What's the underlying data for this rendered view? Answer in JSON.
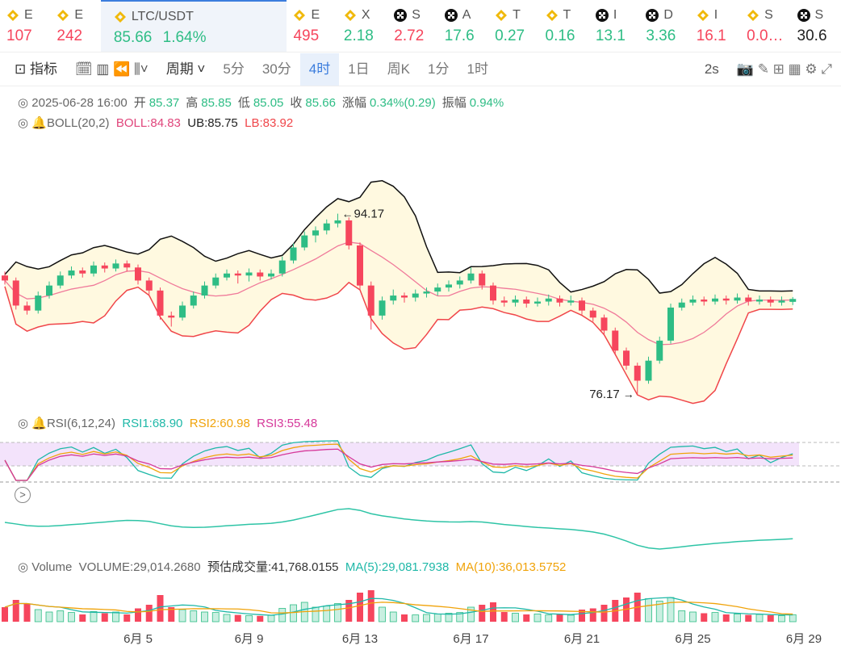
{
  "tickers": [
    {
      "name": "E",
      "price": "107",
      "color": "#f6465d",
      "icon": "bnb"
    },
    {
      "name": "E",
      "price": "242",
      "color": "#f6465d",
      "icon": "bnb"
    },
    {
      "name": "LTC/USDT",
      "price": "85.66",
      "change": "1.64%",
      "color": "#2ebd85",
      "icon": "bnb",
      "selected": true
    },
    {
      "name": "E",
      "price": "495",
      "color": "#f6465d",
      "icon": "bnb"
    },
    {
      "name": "X",
      "price": "2.18",
      "color": "#2ebd85",
      "icon": "bnb"
    },
    {
      "name": "S",
      "price": "2.72",
      "color": "#f6465d",
      "icon": "okx"
    },
    {
      "name": "A",
      "price": "17.6",
      "color": "#2ebd85",
      "icon": "okx"
    },
    {
      "name": "T",
      "price": "0.27",
      "color": "#2ebd85",
      "icon": "bnb"
    },
    {
      "name": "T",
      "price": "0.16",
      "color": "#2ebd85",
      "icon": "bnb"
    },
    {
      "name": "I",
      "price": "13.1",
      "color": "#2ebd85",
      "icon": "okx"
    },
    {
      "name": "D",
      "price": "3.36",
      "color": "#2ebd85",
      "icon": "okx"
    },
    {
      "name": "I",
      "price": "16.1",
      "color": "#f6465d",
      "icon": "bnb"
    },
    {
      "name": "S",
      "price": "0.0…",
      "color": "#f6465d",
      "icon": "bnb"
    },
    {
      "name": "S",
      "price": "30.6",
      "color": "#222222",
      "icon": "okx"
    }
  ],
  "toolbar": {
    "indicator": "指标",
    "period": "周期",
    "intervals": [
      "5分",
      "30分",
      "4时",
      "1日",
      "周K",
      "1分",
      "1时"
    ],
    "active": "4时",
    "refresh": "2s"
  },
  "info": {
    "time": "2025-06-28 16:00",
    "fields": [
      {
        "label": "开",
        "value": "85.37"
      },
      {
        "label": "高",
        "value": "85.85"
      },
      {
        "label": "低",
        "value": "85.05"
      },
      {
        "label": "收",
        "value": "85.66"
      },
      {
        "label": "涨幅",
        "value": "0.34%(0.29)"
      },
      {
        "label": "振幅",
        "value": "0.94%"
      }
    ]
  },
  "boll": {
    "label": "BOLL(20,2)",
    "mid": "BOLL:84.83",
    "ub": "UB:85.75",
    "lb": "LB:83.92"
  },
  "rsi": {
    "label": "RSI(6,12,24)",
    "rsi1": "RSI1:68.90",
    "rsi2": "RSI2:60.98",
    "rsi3": "RSI3:55.48"
  },
  "volume_header": {
    "label": "Volume",
    "volume": "VOLUME:29,014.2680",
    "estimate": "预估成交量:41,768.0155",
    "ma5": "MA(5):29,081.7938",
    "ma10": "MA(10):36,013.5752"
  },
  "chart_data": {
    "type": "candlestick",
    "ylim": [
      74.8,
      101.8
    ],
    "volume_ylim": [
      0,
      140000
    ],
    "categories": [
      null,
      null,
      null,
      null,
      null,
      null,
      null,
      null,
      null,
      null,
      null,
      null,
      "6月 5",
      null,
      null,
      null,
      null,
      null,
      null,
      null,
      null,
      null,
      "6月 9",
      null,
      null,
      null,
      null,
      null,
      null,
      null,
      null,
      null,
      "6月 13",
      null,
      null,
      null,
      null,
      null,
      null,
      null,
      null,
      null,
      "6月 17",
      null,
      null,
      null,
      null,
      null,
      null,
      null,
      null,
      null,
      "6月 21",
      null,
      null,
      null,
      null,
      null,
      null,
      null,
      null,
      null,
      "6月 25",
      null,
      null,
      null,
      null,
      null,
      null,
      null,
      null,
      null,
      "6月 29"
    ],
    "candles": [
      [
        88,
        88.4,
        87.1,
        87.5
      ],
      [
        87.5,
        87.8,
        84.6,
        85
      ],
      [
        85,
        85.4,
        84.1,
        84.5
      ],
      [
        84.5,
        86.4,
        84.2,
        86
      ],
      [
        86,
        87.4,
        85.7,
        87
      ],
      [
        87,
        88.4,
        86.7,
        88
      ],
      [
        88,
        88.9,
        87.7,
        88.5
      ],
      [
        88.5,
        88.8,
        87.8,
        88.2
      ],
      [
        88.2,
        89.4,
        87.9,
        89
      ],
      [
        89,
        89.3,
        88.3,
        88.7
      ],
      [
        88.7,
        89.6,
        88.4,
        89.2
      ],
      [
        89.2,
        89.5,
        88.4,
        88.8
      ],
      [
        88.8,
        89.1,
        87.1,
        87.5
      ],
      [
        87.5,
        87.8,
        86.1,
        86.5
      ],
      [
        86.5,
        86.8,
        83.6,
        84
      ],
      [
        84,
        84.4,
        82.9,
        83.8
      ],
      [
        83.8,
        85.4,
        83.5,
        85
      ],
      [
        85,
        86.4,
        84.7,
        86
      ],
      [
        86,
        87.4,
        85.7,
        87
      ],
      [
        87,
        88.2,
        86.7,
        87.8
      ],
      [
        87.8,
        88.6,
        87.5,
        88.2
      ],
      [
        88.2,
        88.5,
        87.2,
        88
      ],
      [
        88,
        88.7,
        87.4,
        88.3
      ],
      [
        88.3,
        88.6,
        87.5,
        87.9
      ],
      [
        87.9,
        88.6,
        87.6,
        88.2
      ],
      [
        88.2,
        89.9,
        87.9,
        89.5
      ],
      [
        89.5,
        91.2,
        89.2,
        90.8
      ],
      [
        90.8,
        92.4,
        90.5,
        92
      ],
      [
        92,
        92.9,
        91.3,
        92.5
      ],
      [
        92.5,
        93.6,
        92.1,
        93.2
      ],
      [
        93.2,
        94.17,
        92.8,
        93.5
      ],
      [
        93.5,
        93.8,
        90.6,
        91
      ],
      [
        91,
        91.3,
        86.6,
        87
      ],
      [
        87,
        87.4,
        82.6,
        84
      ],
      [
        84,
        85.9,
        83.6,
        85.5
      ],
      [
        85.5,
        86.6,
        85.1,
        86
      ],
      [
        86,
        86.3,
        85.3,
        85.8
      ],
      [
        85.8,
        86.6,
        85.4,
        86.2
      ],
      [
        86.2,
        86.8,
        85.8,
        86.4
      ],
      [
        86.4,
        87.2,
        86,
        86.8
      ],
      [
        86.8,
        87.5,
        86.4,
        87.1
      ],
      [
        87.1,
        87.9,
        86.7,
        87.5
      ],
      [
        87.5,
        88.8,
        87.2,
        88.2
      ],
      [
        88.2,
        88.5,
        86.6,
        87
      ],
      [
        87,
        87.3,
        85.1,
        85.5
      ],
      [
        85.5,
        85.9,
        84.9,
        85.3
      ],
      [
        85.3,
        86,
        84.9,
        85.6
      ],
      [
        85.6,
        85.9,
        84.8,
        85.2
      ],
      [
        85.2,
        85.8,
        84.9,
        85.4
      ],
      [
        85.4,
        86.1,
        85,
        85.7
      ],
      [
        85.7,
        86,
        84.9,
        85.3
      ],
      [
        85.3,
        86,
        85,
        85.5
      ],
      [
        85.5,
        85.8,
        84.1,
        84.5
      ],
      [
        84.5,
        84.8,
        83.4,
        83.8
      ],
      [
        83.8,
        84.1,
        82.1,
        82.5
      ],
      [
        82.5,
        82.8,
        80.1,
        80.5
      ],
      [
        80.5,
        80.8,
        78.6,
        79
      ],
      [
        79,
        79.3,
        76.17,
        77.5
      ],
      [
        77.5,
        79.9,
        77.2,
        79.5
      ],
      [
        79.5,
        81.9,
        79.2,
        81.5
      ],
      [
        81.5,
        85.2,
        81.2,
        84.8
      ],
      [
        84.8,
        85.7,
        84.5,
        85.3
      ],
      [
        85.3,
        86,
        85,
        85.6
      ],
      [
        85.6,
        85.9,
        85,
        85.4
      ],
      [
        85.4,
        86.1,
        85.1,
        85.7
      ],
      [
        85.7,
        86,
        85.1,
        85.5
      ],
      [
        85.5,
        86.2,
        85.2,
        85.8
      ],
      [
        85.8,
        86.1,
        85,
        85.4
      ],
      [
        85.4,
        86,
        85.1,
        85.6
      ],
      [
        85.6,
        85.9,
        84.9,
        85.3
      ],
      [
        85.3,
        85.9,
        85,
        85.5
      ],
      [
        85.37,
        85.85,
        85.05,
        85.66
      ],
      null
    ],
    "volume": [
      60000,
      90000,
      75000,
      50000,
      40000,
      45000,
      38000,
      30000,
      42000,
      35000,
      40000,
      30000,
      55000,
      70000,
      110000,
      60000,
      50000,
      45000,
      40000,
      38000,
      30000,
      28000,
      25000,
      24000,
      26000,
      55000,
      70000,
      80000,
      60000,
      65000,
      75000,
      90000,
      120000,
      130000,
      60000,
      40000,
      30000,
      28000,
      30000,
      32000,
      35000,
      38000,
      60000,
      70000,
      80000,
      40000,
      35000,
      30000,
      32000,
      28000,
      30000,
      27000,
      50000,
      55000,
      70000,
      90000,
      100000,
      120000,
      95000,
      85000,
      100000,
      45000,
      40000,
      35000,
      38000,
      30000,
      32000,
      28000,
      30000,
      27000,
      25000,
      29014.268,
      null
    ],
    "up_color": "#2ebd85",
    "down_color": "#f6465d"
  }
}
